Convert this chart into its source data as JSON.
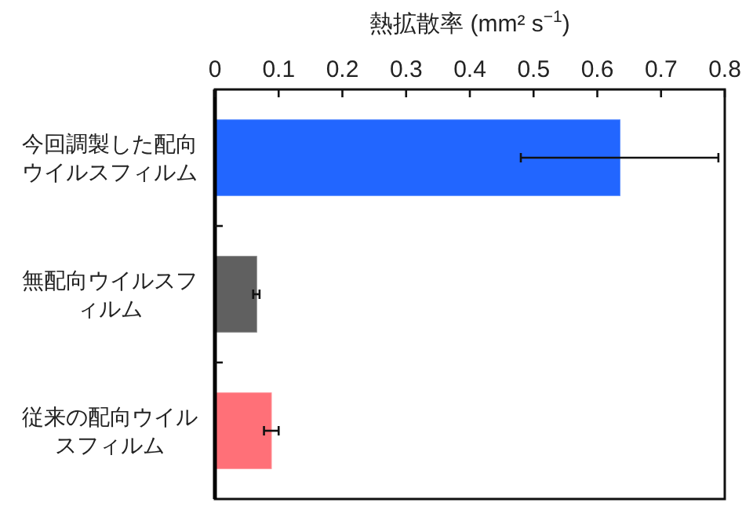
{
  "chart_data": {
    "type": "bar",
    "orientation": "horizontal",
    "xlabel": "熱拡散率 (mm² s$^{−1}$)",
    "categories": [
      "今回調製した配向ウイルスフィルム",
      "無配向ウイルスフィルム",
      "従来の配向ウイルスフィルム"
    ],
    "values": [
      0.635,
      0.065,
      0.088
    ],
    "colors": [
      "#2266ff",
      "#606060",
      "#ff7078"
    ],
    "errors": [
      [
        0.48,
        0.79
      ],
      [
        0.06,
        0.07
      ],
      [
        0.077,
        0.1
      ]
    ],
    "xlim": [
      0,
      0.8
    ],
    "xticks": [
      0,
      0.1,
      0.2,
      0.3,
      0.4,
      0.5,
      0.6,
      0.7,
      0.8
    ],
    "grid": false
  }
}
